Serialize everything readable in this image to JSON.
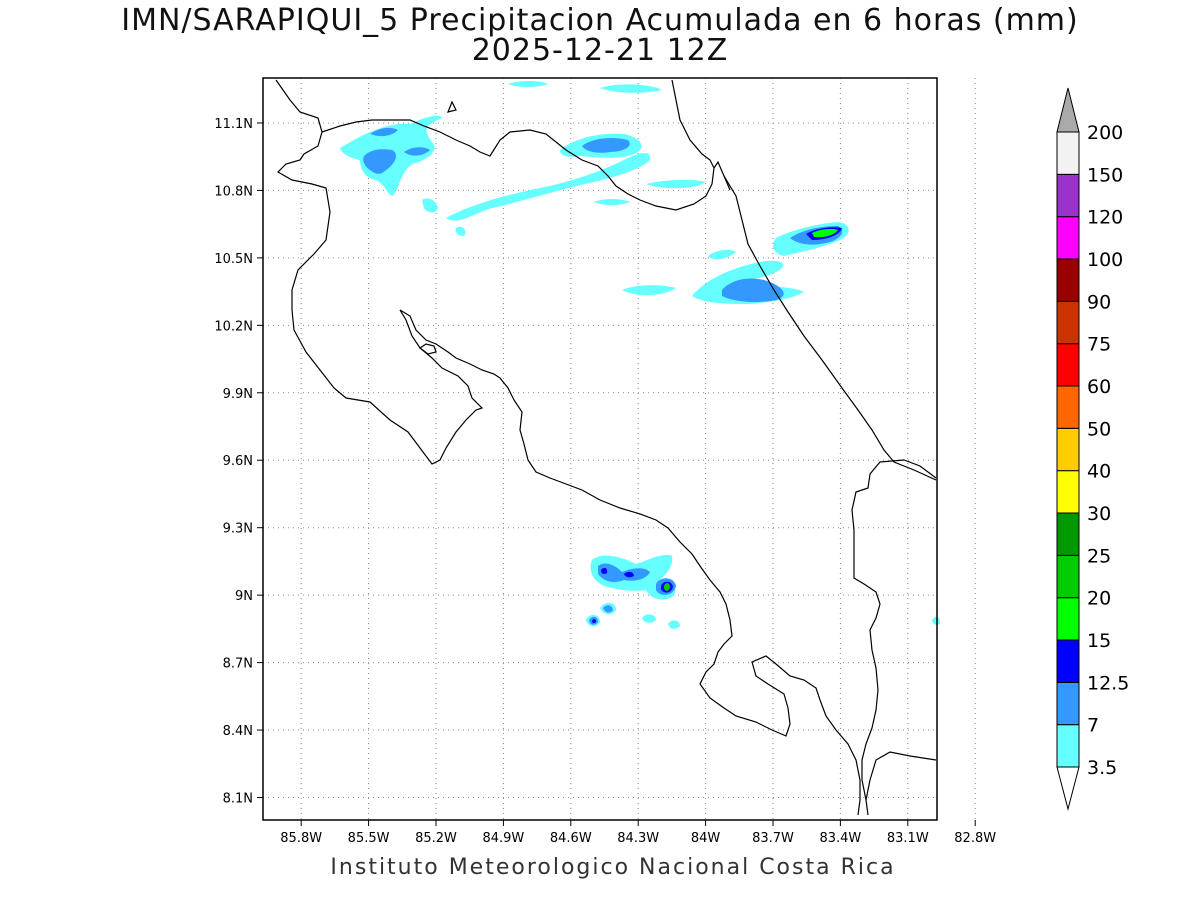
{
  "title": "IMN/SARAPIQUI_5 Precipitacion Acumulada en 6 horas (mm)",
  "subtitle": "2025-12-21 12Z",
  "footer": "Instituto Meteorologico Nacional Costa Rica",
  "axes": {
    "lon_labels": [
      "85.8W",
      "85.5W",
      "85.2W",
      "84.9W",
      "84.6W",
      "84.3W",
      "84W",
      "83.7W",
      "83.4W",
      "83.1W",
      "82.8W"
    ],
    "lon_values": [
      -85.8,
      -85.5,
      -85.2,
      -84.9,
      -84.6,
      -84.3,
      -84.0,
      -83.7,
      -83.4,
      -83.1,
      -82.8
    ],
    "lat_labels": [
      "11.1N",
      "10.8N",
      "10.5N",
      "10.2N",
      "9.9N",
      "9.6N",
      "9.3N",
      "9N",
      "8.7N",
      "8.4N",
      "8.1N"
    ],
    "lat_values": [
      11.1,
      10.8,
      10.5,
      10.2,
      9.9,
      9.6,
      9.3,
      9.0,
      8.7,
      8.4,
      8.1
    ],
    "lon_range": [
      -85.97,
      -82.97
    ],
    "lat_range": [
      8.0,
      11.3
    ],
    "grid": true
  },
  "colorbar": {
    "labels": [
      "3.5",
      "7",
      "12.5",
      "15",
      "20",
      "25",
      "30",
      "40",
      "50",
      "60",
      "75",
      "90",
      "100",
      "120",
      "150",
      "200"
    ],
    "colors": [
      "#66ffff",
      "#3399ff",
      "#0000ff",
      "#00ff00",
      "#00cc00",
      "#009900",
      "#ffff00",
      "#ffcc00",
      "#ff6600",
      "#ff0000",
      "#cc3300",
      "#990000",
      "#ff00ff",
      "#9933cc",
      "#f2f2f2",
      "#aaaaaa"
    ],
    "under_color": "#ffffff",
    "over_color": "#aaaaaa"
  },
  "palette": {
    "light_cyan": "#66ffff",
    "mid_blue": "#3399ff",
    "dark_blue": "#0000ff",
    "green": "#00ff00",
    "dark_green": "#00cc00"
  }
}
